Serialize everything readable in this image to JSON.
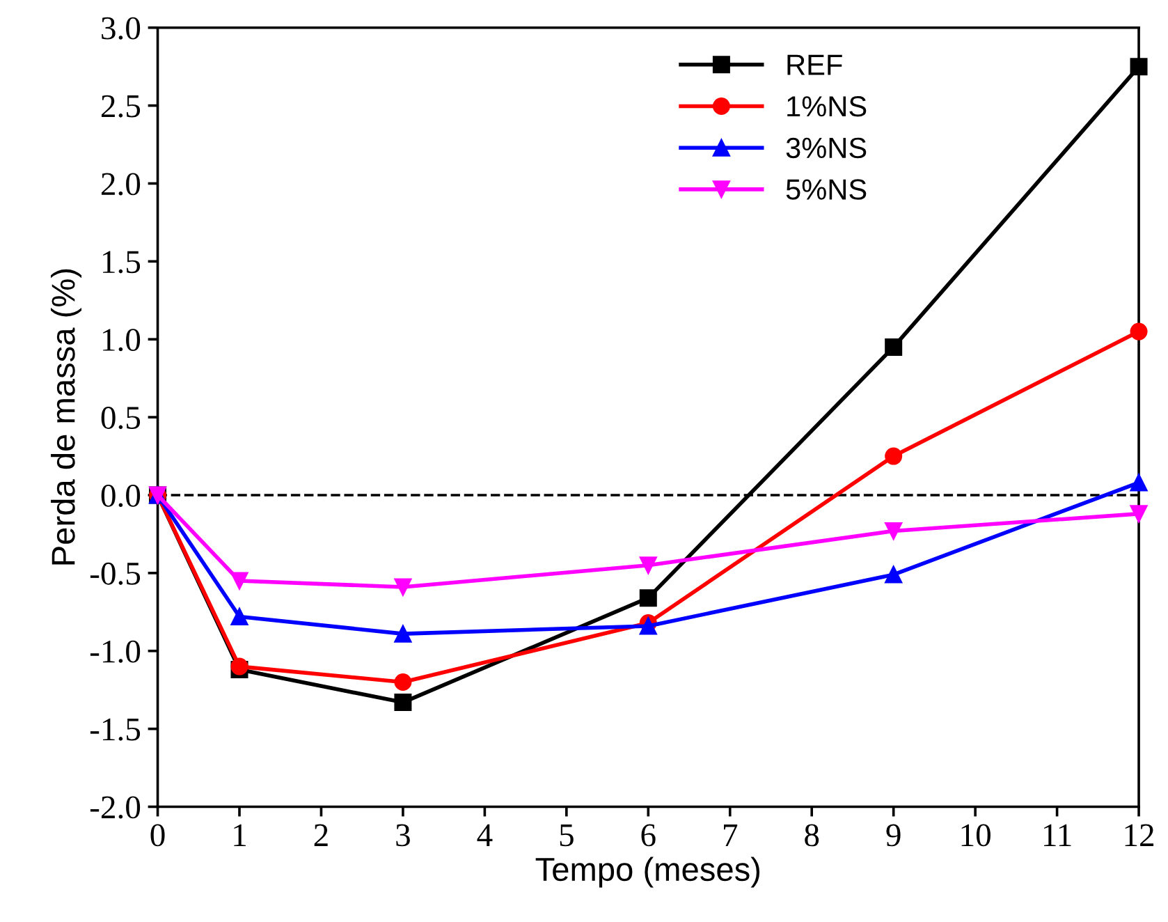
{
  "chart_data": {
    "type": "line",
    "xlabel": "Tempo (meses)",
    "ylabel": "Perda de massa (%)",
    "x": [
      0,
      1,
      3,
      6,
      9,
      12
    ],
    "series": [
      {
        "name": "REF",
        "color": "#000000",
        "marker": "square",
        "values": [
          0,
          -1.12,
          -1.33,
          -0.66,
          0.95,
          2.75
        ]
      },
      {
        "name": "1%NS",
        "color": "#ff0000",
        "marker": "circle",
        "values": [
          0,
          -1.1,
          -1.2,
          -0.82,
          0.25,
          1.05
        ]
      },
      {
        "name": "3%NS",
        "color": "#0000ff",
        "marker": "triangle",
        "values": [
          0,
          -0.78,
          -0.89,
          -0.84,
          -0.51,
          0.08
        ]
      },
      {
        "name": "5%NS",
        "color": "#ff00ff",
        "marker": "triangle_down",
        "values": [
          0,
          -0.55,
          -0.59,
          -0.45,
          -0.23,
          -0.12
        ]
      }
    ],
    "xlim": [
      0,
      12
    ],
    "xticks": [
      0,
      1,
      2,
      3,
      4,
      5,
      6,
      7,
      8,
      9,
      10,
      11,
      12
    ],
    "ylim": [
      -2,
      3
    ],
    "yticks": [
      {
        "value": -2,
        "label": "-2.0"
      },
      {
        "value": -1.5,
        "label": "-1.5"
      },
      {
        "value": -1,
        "label": "-1.0"
      },
      {
        "value": -0.5,
        "label": "-0.5"
      },
      {
        "value": 0,
        "label": "0.0"
      },
      {
        "value": 0.5,
        "label": "0.5"
      },
      {
        "value": 1,
        "label": "1.0"
      },
      {
        "value": 1.5,
        "label": "1.5"
      },
      {
        "value": 2,
        "label": "2.0"
      },
      {
        "value": 2.5,
        "label": "2.5"
      },
      {
        "value": 3,
        "label": "3.0"
      }
    ],
    "ref_lines": [
      {
        "axis": "y",
        "value": 0,
        "color": "#000000",
        "line_style": "dashed"
      }
    ],
    "legend": "top right",
    "grid": false,
    "line_style": "solid"
  }
}
